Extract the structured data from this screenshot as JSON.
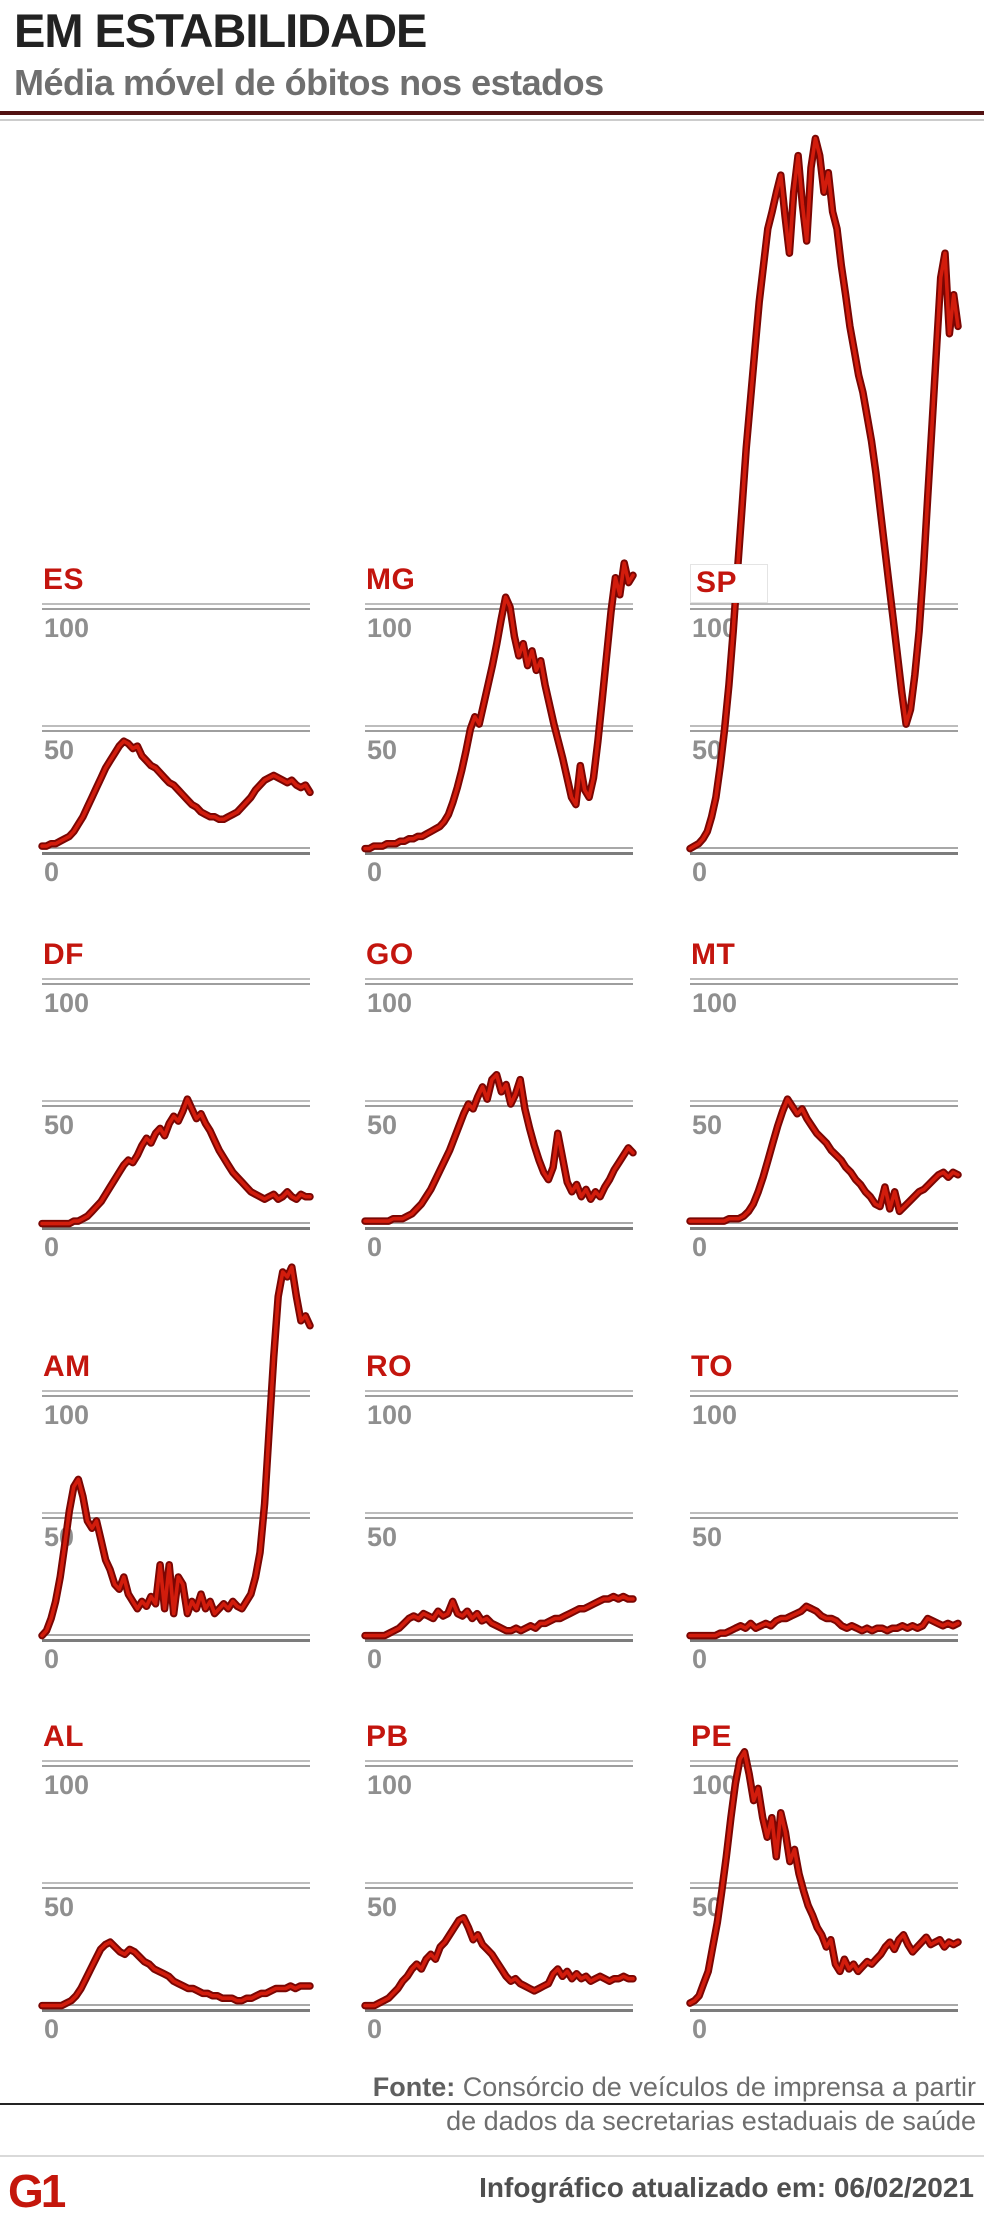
{
  "header": {
    "title": "EM ESTABILIDADE",
    "subtitle": "Média móvel de óbitos nos estados"
  },
  "axis": {
    "ticks": [
      "100",
      "50",
      "0"
    ]
  },
  "colors": {
    "line_core": "#d21c0c",
    "line_edge": "#7a0603",
    "state_label_red": "#c3150e",
    "brand_red": "#c4170c",
    "grid_gray": "#9e9e9e",
    "tick_gray": "#8f8f8f",
    "title_dark": "#222222",
    "subtitle_gray": "#6f6f6f"
  },
  "footer": {
    "source_prefix": "Fonte:",
    "source_line1_rest": " Consórcio de veículos de imprensa a partir",
    "source_line2": "de dados da secretarias estaduais de saúde",
    "updated": "Infográfico atualizado em: 06/02/2021",
    "logo": "G1"
  },
  "chart_data": [
    {
      "type": "line",
      "state": "ES",
      "y_gridlines": [
        0,
        50,
        100
      ],
      "values": [
        2,
        2,
        3,
        3,
        4,
        5,
        6,
        8,
        11,
        14,
        18,
        22,
        26,
        30,
        34,
        37,
        40,
        43,
        45,
        44,
        42,
        43,
        39,
        37,
        35,
        34,
        32,
        30,
        28,
        27,
        25,
        23,
        21,
        19,
        18,
        16,
        15,
        14,
        14,
        13,
        13,
        14,
        15,
        16,
        18,
        20,
        22,
        25,
        27,
        29,
        30,
        31,
        30,
        29,
        28,
        29,
        27,
        26,
        27,
        24
      ]
    },
    {
      "type": "line",
      "state": "MG",
      "y_gridlines": [
        0,
        50,
        100
      ],
      "values": [
        1,
        1,
        2,
        2,
        2,
        3,
        3,
        3,
        4,
        4,
        5,
        5,
        6,
        6,
        7,
        8,
        9,
        10,
        12,
        15,
        20,
        26,
        33,
        41,
        50,
        55,
        52,
        60,
        68,
        76,
        85,
        95,
        104,
        100,
        88,
        80,
        85,
        76,
        82,
        74,
        78,
        68,
        60,
        52,
        45,
        38,
        30,
        22,
        19,
        35,
        25,
        22,
        30,
        45,
        62,
        80,
        98,
        112,
        105,
        118,
        110,
        113
      ]
    },
    {
      "type": "line",
      "state": "SP",
      "boxed_label": true,
      "y_gridlines": [
        0,
        50,
        100
      ],
      "values": [
        1,
        2,
        3,
        5,
        8,
        14,
        22,
        35,
        50,
        68,
        90,
        115,
        140,
        165,
        185,
        205,
        225,
        240,
        255,
        262,
        270,
        277,
        260,
        245,
        270,
        285,
        265,
        250,
        280,
        292,
        285,
        270,
        278,
        262,
        255,
        240,
        228,
        215,
        205,
        195,
        188,
        178,
        168,
        155,
        140,
        125,
        110,
        95,
        80,
        65,
        52,
        58,
        72,
        90,
        115,
        145,
        175,
        205,
        235,
        245,
        212,
        228,
        215
      ]
    },
    {
      "type": "line",
      "state": "DF",
      "y_gridlines": [
        0,
        50,
        100
      ],
      "values": [
        1,
        1,
        1,
        1,
        1,
        1,
        1,
        2,
        2,
        3,
        4,
        6,
        8,
        10,
        13,
        16,
        19,
        22,
        25,
        27,
        26,
        29,
        33,
        36,
        34,
        38,
        40,
        37,
        42,
        45,
        43,
        47,
        52,
        48,
        44,
        46,
        42,
        39,
        35,
        31,
        28,
        25,
        22,
        20,
        18,
        16,
        14,
        13,
        12,
        11,
        12,
        13,
        11,
        12,
        14,
        12,
        11,
        13,
        12,
        12
      ]
    },
    {
      "type": "line",
      "state": "GO",
      "y_gridlines": [
        0,
        50,
        100
      ],
      "values": [
        2,
        2,
        2,
        2,
        2,
        2,
        3,
        3,
        3,
        4,
        5,
        7,
        9,
        12,
        15,
        19,
        23,
        27,
        31,
        36,
        41,
        46,
        50,
        48,
        53,
        57,
        52,
        60,
        62,
        55,
        58,
        50,
        54,
        60,
        48,
        40,
        33,
        27,
        22,
        19,
        24,
        38,
        28,
        18,
        14,
        17,
        12,
        15,
        11,
        14,
        12,
        16,
        19,
        23,
        26,
        29,
        32,
        30
      ]
    },
    {
      "type": "line",
      "state": "MT",
      "y_gridlines": [
        0,
        50,
        100
      ],
      "values": [
        2,
        2,
        2,
        2,
        2,
        2,
        2,
        2,
        3,
        3,
        3,
        4,
        6,
        9,
        14,
        20,
        27,
        34,
        41,
        47,
        52,
        49,
        46,
        48,
        44,
        41,
        38,
        36,
        34,
        31,
        29,
        27,
        24,
        22,
        19,
        17,
        14,
        12,
        9,
        8,
        16,
        7,
        14,
        6,
        8,
        10,
        12,
        14,
        15,
        17,
        19,
        21,
        22,
        20,
        22,
        21
      ]
    },
    {
      "type": "line",
      "state": "AM",
      "y_gridlines": [
        0,
        50,
        100
      ],
      "values": [
        1,
        3,
        8,
        15,
        25,
        38,
        52,
        62,
        65,
        58,
        48,
        45,
        48,
        40,
        32,
        28,
        22,
        20,
        25,
        18,
        15,
        12,
        15,
        13,
        17,
        14,
        30,
        12,
        30,
        10,
        25,
        22,
        10,
        15,
        12,
        18,
        12,
        15,
        10,
        12,
        14,
        12,
        15,
        13,
        12,
        15,
        18,
        25,
        35,
        55,
        85,
        115,
        140,
        150,
        148,
        152,
        140,
        130,
        132,
        128
      ]
    },
    {
      "type": "line",
      "state": "RO",
      "y_gridlines": [
        0,
        50,
        100
      ],
      "values": [
        1,
        1,
        1,
        1,
        1,
        2,
        3,
        4,
        6,
        8,
        9,
        8,
        10,
        9,
        8,
        11,
        9,
        10,
        15,
        10,
        9,
        11,
        8,
        10,
        7,
        8,
        6,
        5,
        4,
        3,
        3,
        4,
        3,
        4,
        5,
        4,
        6,
        6,
        7,
        8,
        8,
        9,
        10,
        11,
        12,
        12,
        13,
        14,
        15,
        16,
        16,
        17,
        16,
        17,
        16,
        16
      ]
    },
    {
      "type": "line",
      "state": "TO",
      "y_gridlines": [
        0,
        50,
        100
      ],
      "values": [
        1,
        1,
        1,
        1,
        1,
        1,
        2,
        2,
        3,
        4,
        5,
        4,
        6,
        4,
        5,
        6,
        5,
        7,
        8,
        8,
        9,
        10,
        11,
        13,
        12,
        11,
        9,
        8,
        8,
        7,
        5,
        4,
        5,
        4,
        3,
        4,
        3,
        4,
        4,
        3,
        4,
        4,
        5,
        4,
        5,
        4,
        5,
        8,
        7,
        6,
        5,
        6,
        5,
        6
      ]
    },
    {
      "type": "line",
      "state": "AL",
      "y_gridlines": [
        0,
        50,
        100
      ],
      "values": [
        1,
        1,
        1,
        1,
        1,
        2,
        3,
        5,
        8,
        12,
        16,
        20,
        24,
        26,
        27,
        25,
        23,
        22,
        24,
        23,
        21,
        19,
        18,
        16,
        15,
        14,
        13,
        11,
        10,
        9,
        8,
        8,
        7,
        6,
        6,
        5,
        5,
        4,
        4,
        4,
        3,
        3,
        4,
        4,
        5,
        6,
        6,
        7,
        8,
        8,
        8,
        9,
        8,
        9,
        9,
        9
      ]
    },
    {
      "type": "line",
      "state": "PB",
      "y_gridlines": [
        0,
        50,
        100
      ],
      "values": [
        1,
        1,
        1,
        2,
        3,
        4,
        6,
        8,
        11,
        13,
        16,
        18,
        16,
        20,
        22,
        20,
        25,
        27,
        30,
        33,
        36,
        37,
        33,
        28,
        30,
        26,
        24,
        22,
        19,
        16,
        13,
        11,
        12,
        10,
        9,
        8,
        7,
        8,
        9,
        10,
        14,
        16,
        13,
        15,
        12,
        14,
        12,
        13,
        11,
        12,
        13,
        12,
        11,
        12,
        12,
        13,
        12,
        12
      ]
    },
    {
      "type": "line",
      "state": "PE",
      "y_gridlines": [
        0,
        50,
        100
      ],
      "values": [
        2,
        3,
        5,
        10,
        15,
        25,
        35,
        48,
        62,
        78,
        92,
        102,
        105,
        96,
        85,
        90,
        78,
        70,
        78,
        62,
        80,
        72,
        60,
        65,
        55,
        48,
        42,
        38,
        33,
        30,
        25,
        28,
        18,
        15,
        20,
        16,
        18,
        15,
        17,
        19,
        18,
        20,
        22,
        25,
        27,
        24,
        28,
        30,
        26,
        23,
        25,
        27,
        29,
        26,
        27,
        28,
        25,
        27,
        26,
        27
      ]
    }
  ]
}
